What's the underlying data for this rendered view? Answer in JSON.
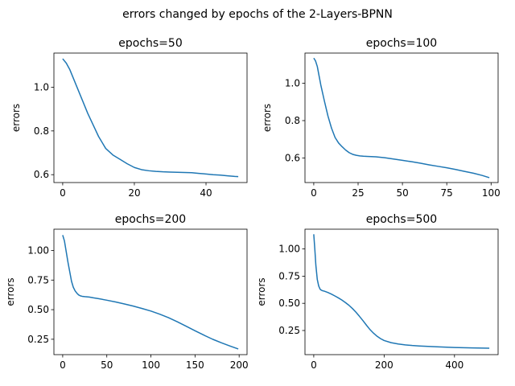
{
  "figure": {
    "suptitle": "errors changed by epochs of the 2-Layers-BPNN"
  },
  "chart_data": [
    {
      "type": "line",
      "title": "epochs=50",
      "xlabel": "",
      "ylabel": "errors",
      "xlim": [
        -2.45,
        51.45
      ],
      "ylim": [
        0.564,
        1.156
      ],
      "xticks": [
        0,
        20,
        40
      ],
      "yticks": [
        0.6,
        0.8,
        1.0
      ],
      "yticklabels": [
        "0.6",
        "0.8",
        "1.0"
      ],
      "grid": false,
      "color": "#1f77b4",
      "x": [
        0,
        1,
        2,
        3,
        4,
        5,
        6,
        7,
        8,
        9,
        10,
        12,
        14,
        16,
        18,
        20,
        22,
        24,
        26,
        28,
        30,
        32,
        34,
        36,
        38,
        40,
        42,
        44,
        46,
        48,
        49
      ],
      "y": [
        1.13,
        1.11,
        1.08,
        1.04,
        1.0,
        0.96,
        0.92,
        0.88,
        0.845,
        0.81,
        0.775,
        0.72,
        0.69,
        0.67,
        0.65,
        0.633,
        0.623,
        0.618,
        0.615,
        0.613,
        0.612,
        0.611,
        0.61,
        0.609,
        0.606,
        0.603,
        0.6,
        0.598,
        0.595,
        0.592,
        0.591
      ]
    },
    {
      "type": "line",
      "title": "epochs=100",
      "xlabel": "",
      "ylabel": "errors",
      "xlim": [
        -4.95,
        103.95
      ],
      "ylim": [
        0.468,
        1.162
      ],
      "xticks": [
        0,
        25,
        50,
        75,
        100
      ],
      "yticks": [
        0.6,
        0.8,
        1.0
      ],
      "yticklabels": [
        "0.6",
        "0.8",
        "1.0"
      ],
      "grid": false,
      "color": "#1f77b4",
      "x": [
        0,
        1,
        2,
        3,
        4,
        6,
        8,
        10,
        12,
        14,
        16,
        18,
        20,
        22,
        24,
        26,
        28,
        30,
        35,
        40,
        45,
        50,
        55,
        60,
        65,
        70,
        75,
        80,
        85,
        90,
        95,
        99
      ],
      "y": [
        1.135,
        1.12,
        1.09,
        1.04,
        0.99,
        0.905,
        0.825,
        0.76,
        0.71,
        0.68,
        0.66,
        0.642,
        0.628,
        0.619,
        0.614,
        0.611,
        0.609,
        0.608,
        0.606,
        0.601,
        0.594,
        0.587,
        0.58,
        0.572,
        0.563,
        0.555,
        0.547,
        0.538,
        0.528,
        0.518,
        0.506,
        0.494
      ]
    },
    {
      "type": "line",
      "title": "epochs=200",
      "xlabel": "",
      "ylabel": "errors",
      "xlim": [
        -9.95,
        208.95
      ],
      "ylim": [
        0.12,
        1.18
      ],
      "xticks": [
        0,
        50,
        100,
        150,
        200
      ],
      "yticks": [
        0.25,
        0.5,
        0.75,
        1.0
      ],
      "yticklabels": [
        "0.25",
        "0.50",
        "0.75",
        "1.00"
      ],
      "grid": false,
      "color": "#1f77b4",
      "x": [
        0,
        2,
        4,
        6,
        8,
        10,
        12,
        14,
        16,
        18,
        20,
        22,
        25,
        30,
        35,
        40,
        50,
        60,
        70,
        80,
        90,
        100,
        110,
        120,
        130,
        140,
        150,
        160,
        170,
        180,
        190,
        199
      ],
      "y": [
        1.13,
        1.08,
        0.99,
        0.9,
        0.82,
        0.74,
        0.69,
        0.66,
        0.64,
        0.625,
        0.617,
        0.613,
        0.61,
        0.607,
        0.6,
        0.594,
        0.58,
        0.565,
        0.548,
        0.53,
        0.51,
        0.488,
        0.462,
        0.432,
        0.397,
        0.36,
        0.322,
        0.285,
        0.25,
        0.22,
        0.192,
        0.168
      ]
    },
    {
      "type": "line",
      "title": "epochs=500",
      "xlabel": "",
      "ylabel": "errors",
      "xlim": [
        -24.95,
        523.95
      ],
      "ylim": [
        0.028,
        1.182
      ],
      "xticks": [
        0,
        200,
        400
      ],
      "yticks": [
        0.25,
        0.5,
        0.75,
        1.0
      ],
      "yticklabels": [
        "0.25",
        "0.50",
        "0.75",
        "1.00"
      ],
      "grid": false,
      "color": "#1f77b4",
      "x": [
        0,
        3,
        6,
        10,
        14,
        18,
        22,
        26,
        30,
        40,
        50,
        60,
        70,
        80,
        90,
        100,
        110,
        120,
        130,
        140,
        150,
        160,
        170,
        180,
        190,
        200,
        220,
        240,
        260,
        280,
        300,
        350,
        400,
        450,
        499
      ],
      "y": [
        1.135,
        1.0,
        0.85,
        0.72,
        0.66,
        0.63,
        0.62,
        0.615,
        0.612,
        0.6,
        0.585,
        0.568,
        0.55,
        0.53,
        0.507,
        0.482,
        0.452,
        0.418,
        0.38,
        0.34,
        0.298,
        0.258,
        0.225,
        0.197,
        0.175,
        0.158,
        0.138,
        0.126,
        0.118,
        0.112,
        0.108,
        0.1,
        0.094,
        0.09,
        0.087
      ]
    }
  ]
}
